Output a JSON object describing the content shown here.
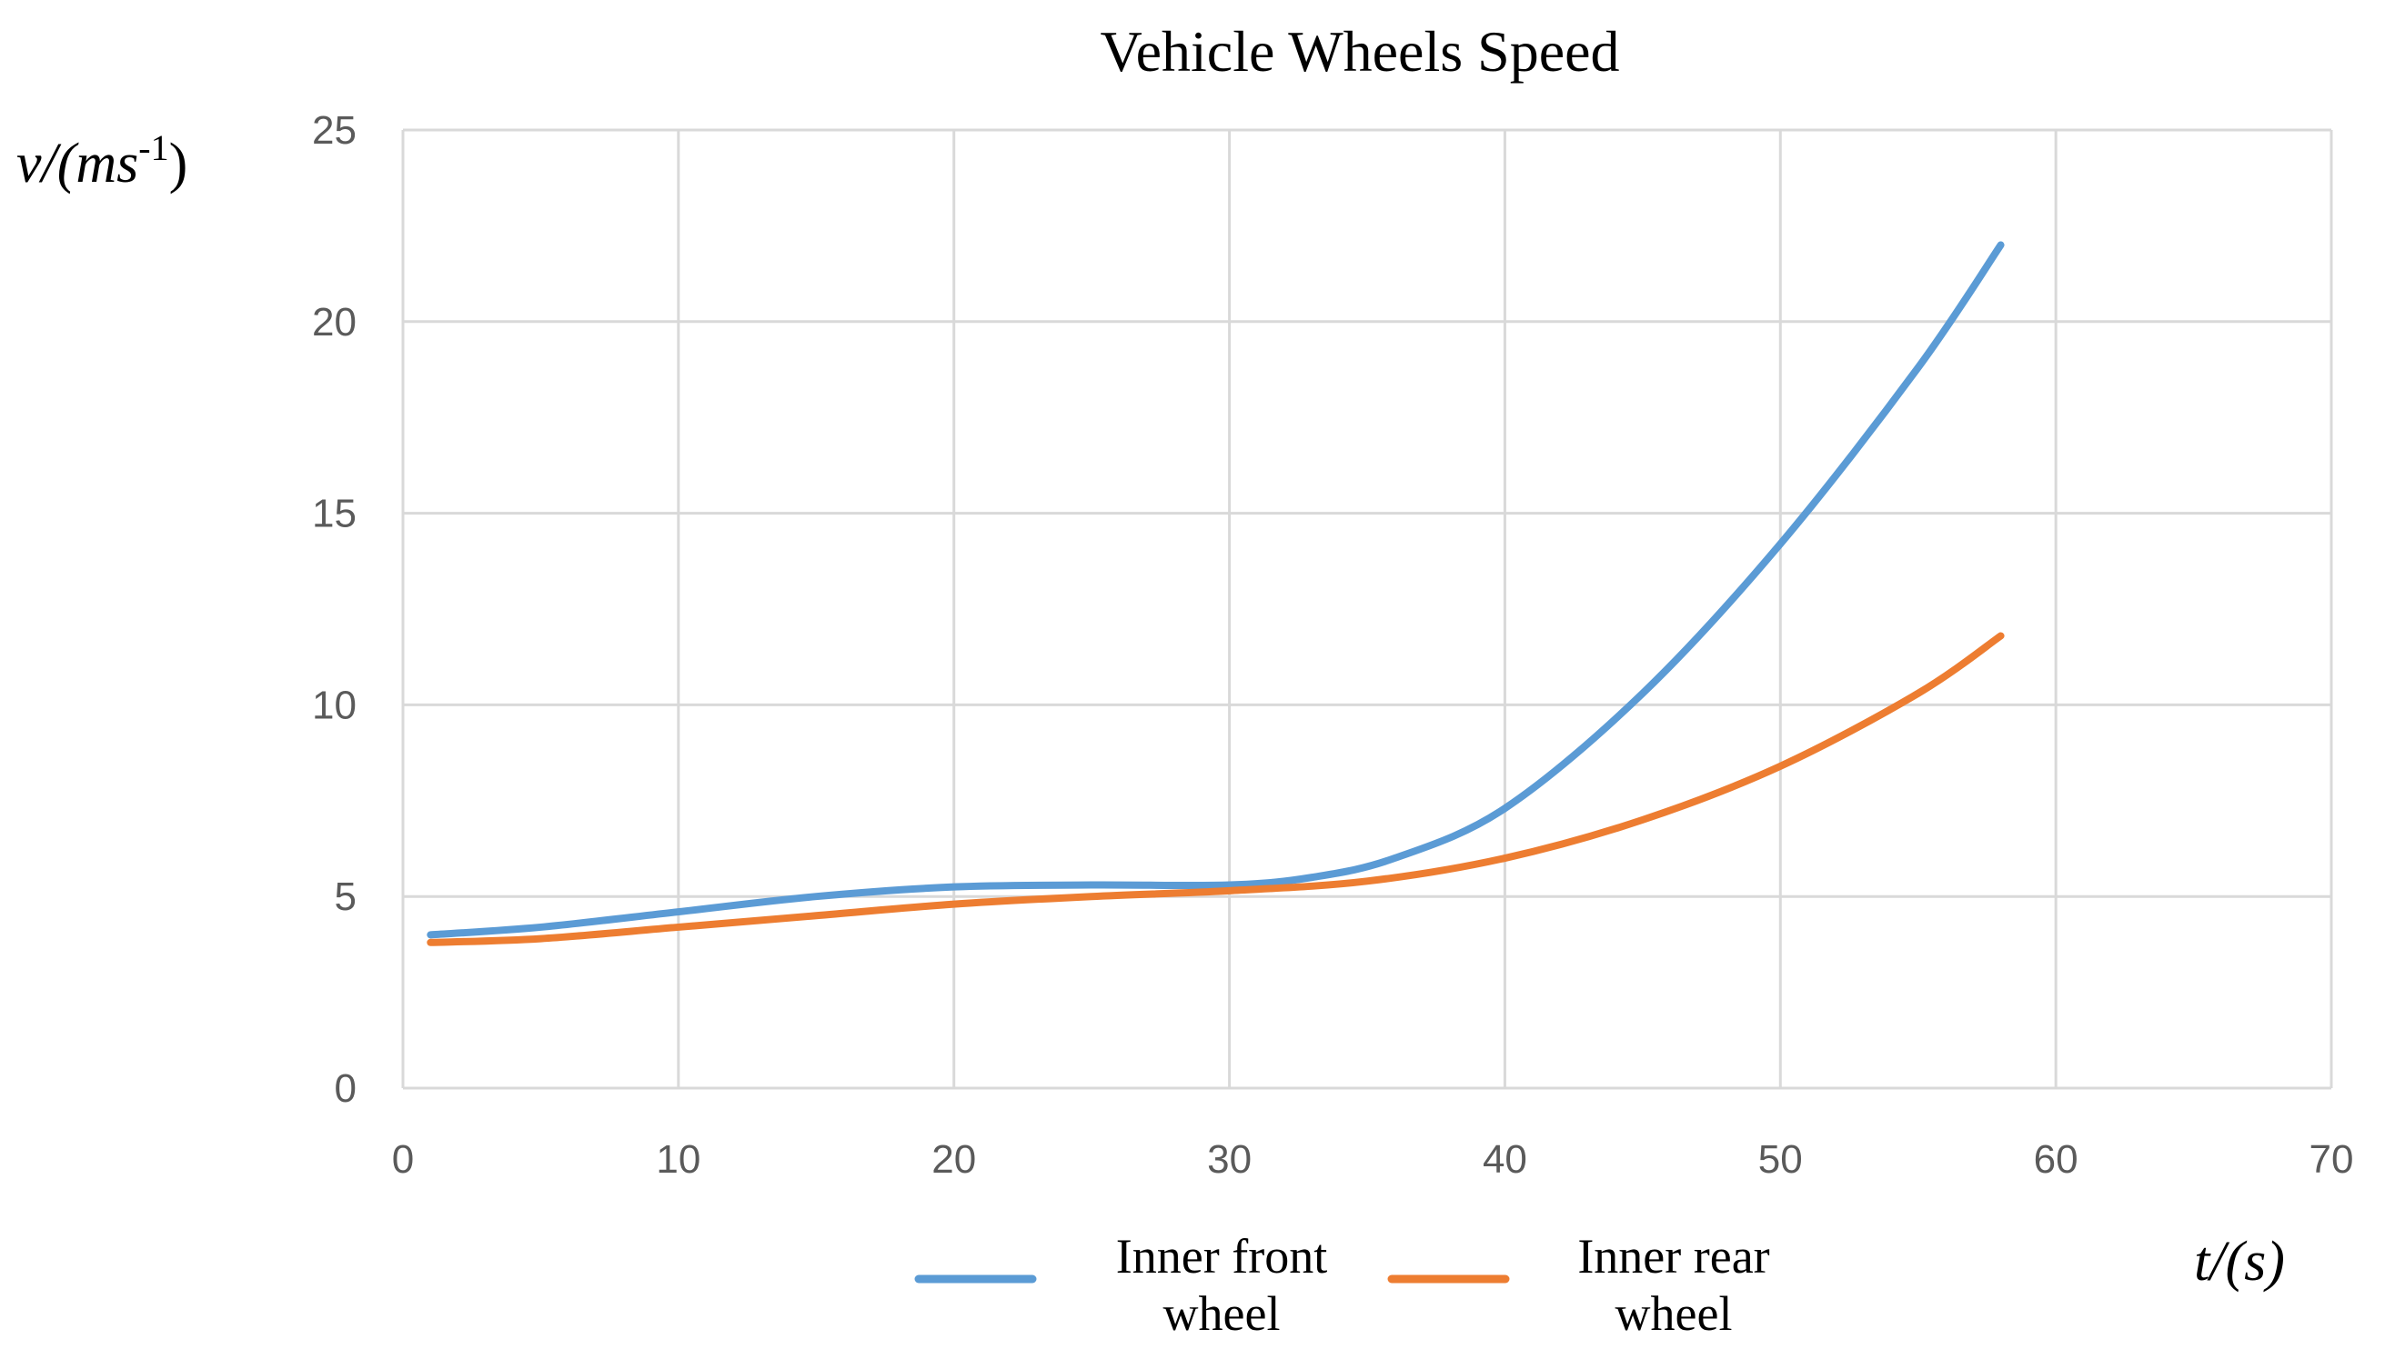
{
  "chart_data": {
    "type": "line",
    "title": "Vehicle Wheels Speed",
    "ylabel": {
      "prefix": "v/(ms",
      "sup": "-1",
      "suffix": ")"
    },
    "xlabel": "t/(s)",
    "xlim": [
      0,
      70
    ],
    "ylim": [
      0,
      25
    ],
    "x_ticks": [
      0,
      10,
      20,
      30,
      40,
      50,
      60,
      70
    ],
    "y_ticks": [
      0,
      5,
      10,
      15,
      20,
      25
    ],
    "grid": true,
    "legend_position": "bottom",
    "series": [
      {
        "name_lines": [
          "Inner front",
          "wheel"
        ],
        "color": "#5B9BD5",
        "x": [
          1,
          5,
          10,
          15,
          20,
          25,
          30,
          33,
          36,
          40,
          45,
          50,
          55,
          58
        ],
        "y": [
          4.0,
          4.2,
          4.6,
          5.0,
          5.25,
          5.3,
          5.3,
          5.5,
          6.0,
          7.3,
          10.3,
          14.2,
          18.8,
          22.0
        ]
      },
      {
        "name_lines": [
          "Inner rear",
          "wheel"
        ],
        "color": "#ED7D31",
        "x": [
          1,
          5,
          10,
          15,
          20,
          25,
          30,
          35,
          40,
          45,
          50,
          55,
          58
        ],
        "y": [
          3.8,
          3.9,
          4.2,
          4.5,
          4.8,
          5.0,
          5.15,
          5.4,
          6.0,
          7.0,
          8.4,
          10.3,
          11.8
        ]
      }
    ]
  }
}
